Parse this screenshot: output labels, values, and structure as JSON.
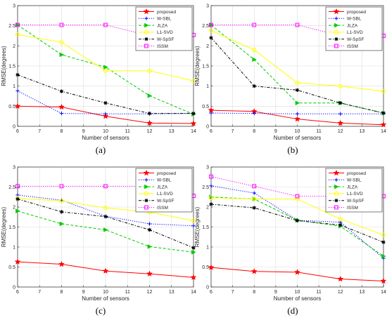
{
  "chart_data": [
    {
      "type": "line",
      "panel_label": "(a)",
      "x": [
        6,
        8,
        10,
        12,
        14
      ],
      "xlabel": "Number of sensors",
      "ylabel": "RMSE(degrees)",
      "xlim": [
        6,
        14
      ],
      "ylim": [
        0,
        3
      ],
      "xticks": [
        "6",
        "7",
        "8",
        "9",
        "10",
        "11",
        "12",
        "13",
        "14"
      ],
      "yticks": [
        "0",
        "0.5",
        "1",
        "1.5",
        "2",
        "2.5",
        "3"
      ],
      "grid": true,
      "legend_position": "top-right",
      "series": [
        {
          "name": "proposed",
          "values": [
            0.5,
            0.48,
            0.25,
            0.08,
            0.07
          ]
        },
        {
          "name": "W-SBL",
          "values": [
            0.88,
            0.32,
            0.31,
            0.31,
            0.32
          ]
        },
        {
          "name": "JLZA",
          "values": [
            2.52,
            1.78,
            1.47,
            0.76,
            0.3
          ]
        },
        {
          "name": "L1-SVD",
          "values": [
            2.28,
            2.09,
            1.38,
            1.38,
            1.13
          ]
        },
        {
          "name": "W-SpSF",
          "values": [
            1.28,
            0.87,
            0.58,
            0.32,
            0.32
          ]
        },
        {
          "name": "ISSM",
          "values": [
            2.52,
            2.52,
            2.52,
            2.25,
            2.27
          ]
        }
      ]
    },
    {
      "type": "line",
      "panel_label": "(b)",
      "x": [
        6,
        8,
        10,
        12,
        14
      ],
      "xlabel": "Number of sensors",
      "ylabel": "RMSE(degrees)",
      "xlim": [
        6,
        14
      ],
      "ylim": [
        0,
        3
      ],
      "xticks": [
        "6",
        "7",
        "8",
        "9",
        "10",
        "11",
        "12",
        "13",
        "14"
      ],
      "yticks": [
        "0",
        "0.5",
        "1",
        "1.5",
        "2",
        "2.5",
        "3"
      ],
      "grid": true,
      "legend_position": "top-right",
      "series": [
        {
          "name": "proposed",
          "values": [
            0.4,
            0.37,
            0.18,
            0.08,
            0.04
          ]
        },
        {
          "name": "W-SBL",
          "values": [
            0.33,
            0.32,
            0.31,
            0.31,
            0.31
          ]
        },
        {
          "name": "JLZA",
          "values": [
            2.52,
            1.66,
            0.58,
            0.58,
            0.33
          ]
        },
        {
          "name": "L1-SVD",
          "values": [
            2.38,
            1.9,
            1.08,
            1.0,
            0.87
          ]
        },
        {
          "name": "W-SpSF",
          "values": [
            2.2,
            1.0,
            0.9,
            0.58,
            0.33
          ]
        },
        {
          "name": "ISSM",
          "values": [
            2.52,
            2.52,
            2.52,
            2.25,
            2.25
          ]
        }
      ]
    },
    {
      "type": "line",
      "panel_label": "(c)",
      "x": [
        6,
        8,
        10,
        12,
        14
      ],
      "xlabel": "Number of sensors",
      "ylabel": "RMSE(degrees)",
      "xlim": [
        6,
        14
      ],
      "ylim": [
        0,
        3
      ],
      "xticks": [
        "6",
        "7",
        "8",
        "9",
        "10",
        "11",
        "12",
        "13",
        "14"
      ],
      "yticks": [
        "0",
        "0.5",
        "1",
        "1.5",
        "2",
        "2.5",
        "3"
      ],
      "grid": true,
      "legend_position": "top-right",
      "series": [
        {
          "name": "proposed",
          "values": [
            0.63,
            0.57,
            0.4,
            0.33,
            0.24
          ]
        },
        {
          "name": "W-SBL",
          "values": [
            2.3,
            2.17,
            1.77,
            1.58,
            1.53
          ]
        },
        {
          "name": "JLZA",
          "values": [
            1.9,
            1.58,
            1.43,
            1.01,
            0.87
          ]
        },
        {
          "name": "L1-SVD",
          "values": [
            2.22,
            2.15,
            1.98,
            1.87,
            1.66
          ]
        },
        {
          "name": "W-SpSF",
          "values": [
            2.2,
            1.88,
            1.76,
            1.43,
            0.98
          ]
        },
        {
          "name": "ISSM",
          "values": [
            2.52,
            2.52,
            2.52,
            2.52,
            2.28
          ]
        }
      ]
    },
    {
      "type": "line",
      "panel_label": "(d)",
      "x": [
        6,
        8,
        10,
        12,
        14
      ],
      "xlabel": "Number of sensors",
      "ylabel": "RMSE(degrees)",
      "xlim": [
        6,
        14
      ],
      "ylim": [
        0,
        3
      ],
      "xticks": [
        "6",
        "7",
        "8",
        "9",
        "10",
        "11",
        "12",
        "13",
        "14"
      ],
      "yticks": [
        "0",
        "0.5",
        "1",
        "1.5",
        "2",
        "2.5",
        "3"
      ],
      "grid": true,
      "legend_position": "top-right",
      "series": [
        {
          "name": "proposed",
          "values": [
            0.49,
            0.39,
            0.37,
            0.2,
            0.15
          ]
        },
        {
          "name": "W-SBL",
          "values": [
            2.53,
            2.35,
            1.67,
            1.62,
            0.72
          ]
        },
        {
          "name": "JLZA",
          "values": [
            2.25,
            2.2,
            1.67,
            1.52,
            0.77
          ]
        },
        {
          "name": "L1-SVD",
          "values": [
            2.23,
            2.2,
            2.2,
            1.7,
            1.3
          ]
        },
        {
          "name": "W-SpSF",
          "values": [
            2.07,
            1.98,
            1.66,
            1.55,
            1.12
          ]
        },
        {
          "name": "ISSM",
          "values": [
            2.76,
            2.52,
            2.27,
            2.27,
            2.27
          ]
        }
      ]
    }
  ],
  "style": {
    "series_colors": [
      "#ff0000",
      "#0000ff",
      "#00cc00",
      "#ffff00",
      "#000000",
      "#ff00ff"
    ],
    "series_markers": [
      "star",
      "plus",
      "triangle-right",
      "circle",
      "asterisk",
      "square"
    ],
    "series_dashes": [
      "solid",
      "dotted",
      "dashed",
      "solid",
      "dash-dot",
      "dotted"
    ]
  }
}
